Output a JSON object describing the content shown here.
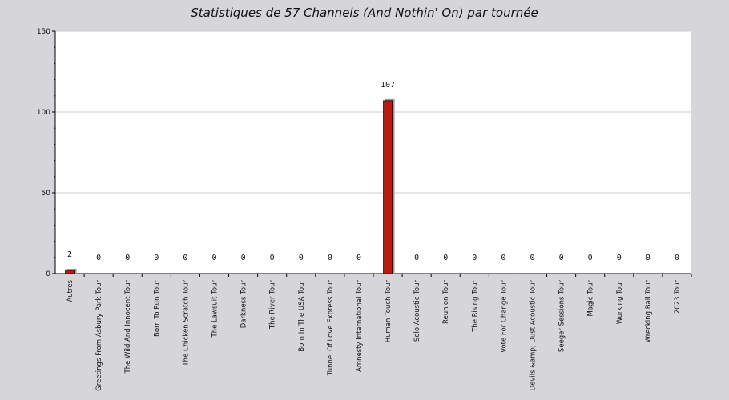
{
  "chart_data": {
    "type": "bar",
    "title": "Statistiques de 57 Channels (And Nothin' On) par tournée",
    "xlabel": "",
    "ylabel": "",
    "ylim": [
      0,
      150
    ],
    "yticks": [
      0,
      50,
      100,
      150
    ],
    "grid": true,
    "legend": "none",
    "categories": [
      "Autres",
      "Greetings From Asbury Park Tour",
      "The Wild And Innocent Tour",
      "Born To Run Tour",
      "The Chicken Scratch Tour",
      "The Lawsuit Tour",
      "Darkness Tour",
      "The River Tour",
      "Born In The USA Tour",
      "Tunnel Of Love Express Tour",
      "Amnesty International Tour",
      "Human Touch Tour",
      "Solo Acoustic Tour",
      "Reunion Tour",
      "The Rising Tour",
      "Vote For Change Tour",
      "Devils &amp; Dust Acoustic Tour",
      "Seeger Sessions Tour",
      "Magic Tour",
      "Working Tour",
      "Wrecking Ball Tour",
      "2023 Tour"
    ],
    "values": [
      2,
      0,
      0,
      0,
      0,
      0,
      0,
      0,
      0,
      0,
      0,
      107,
      0,
      0,
      0,
      0,
      0,
      0,
      0,
      0,
      0,
      0
    ],
    "colors": {
      "bar": "#b51c12",
      "bar_edge": "#2a0000",
      "shadow": "#9a9a9a",
      "plot_bg": "#ffffff",
      "page_bg": "#d6d5da",
      "grid": "#cccccc"
    }
  }
}
